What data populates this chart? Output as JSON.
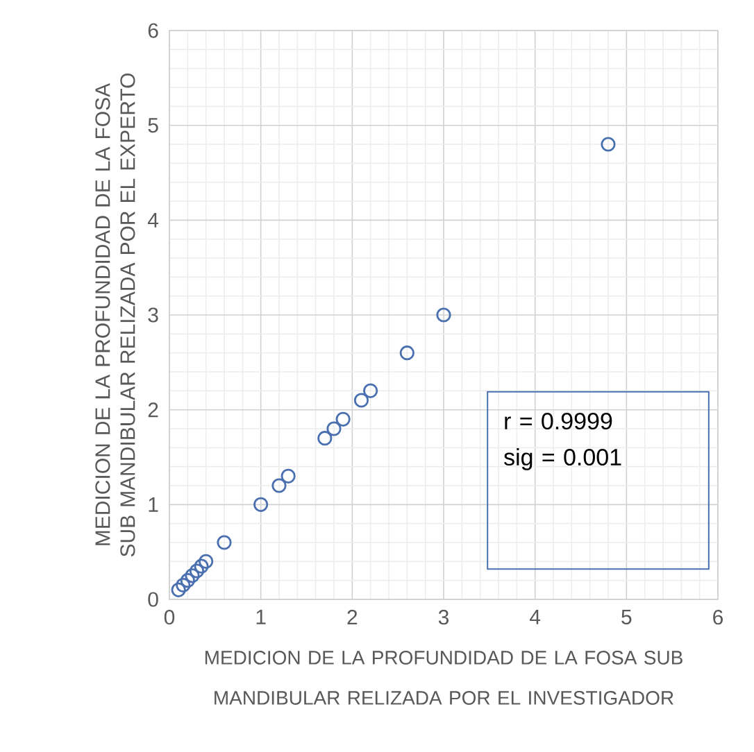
{
  "chart_data": {
    "type": "scatter",
    "xlabel": "MEDICION DE LA PROFUNDIDAD DE LA FOSA SUB MANDIBULAR RELIZADA POR EL INVESTIGADOR",
    "ylabel": "MEDICION DE LA PROFUNDIDAD DE LA FOSA SUB MANDIBULAR RELIZADA POR EL EXPERTO",
    "x": [
      0.1,
      0.15,
      0.2,
      0.25,
      0.3,
      0.35,
      0.4,
      0.6,
      1.0,
      1.2,
      1.3,
      1.7,
      1.8,
      1.9,
      2.1,
      2.2,
      2.6,
      3.0,
      4.8
    ],
    "values": [
      0.1,
      0.15,
      0.2,
      0.25,
      0.3,
      0.35,
      0.4,
      0.6,
      1.0,
      1.2,
      1.3,
      1.7,
      1.8,
      1.9,
      2.1,
      2.2,
      2.6,
      3.0,
      4.8
    ],
    "color": "#4a70b0",
    "marker": "circle",
    "xlim": [
      0,
      6
    ],
    "ylim": [
      0,
      6
    ],
    "xticks": [
      0,
      1,
      2,
      3,
      4,
      5,
      6
    ],
    "yticks": [
      0,
      1,
      2,
      3,
      4,
      5,
      6
    ],
    "grid": true,
    "annotations": [
      "r = 0.9999",
      "sig = 0.001"
    ]
  }
}
